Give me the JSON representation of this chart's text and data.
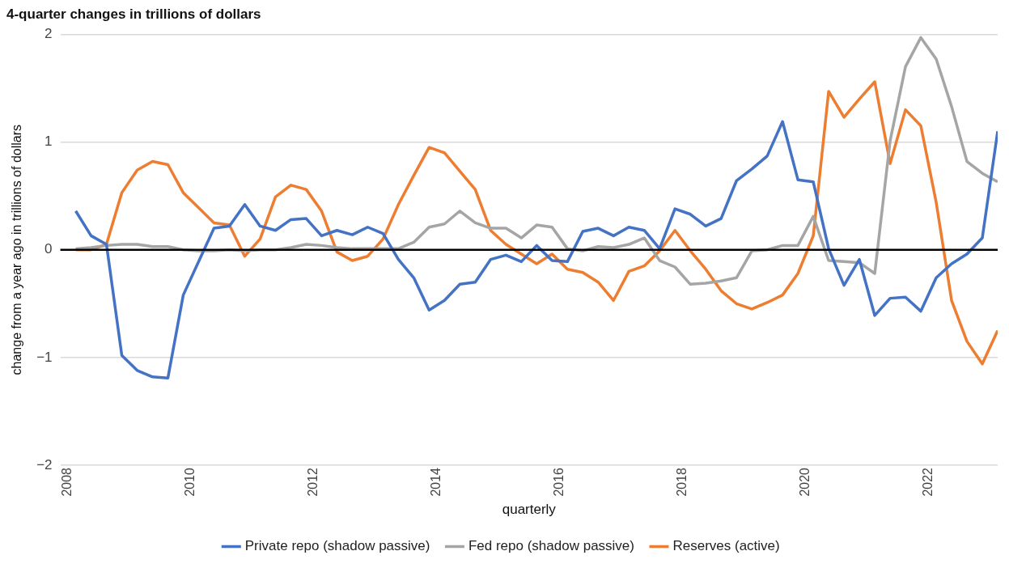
{
  "chart_data": {
    "type": "line",
    "title": "4-quarter changes in trillions of dollars",
    "xlabel": "quarterly",
    "ylabel": "change from a year ago in trillions of dollars",
    "x": [
      2008.125,
      2008.375,
      2008.625,
      2008.875,
      2009.125,
      2009.375,
      2009.625,
      2009.875,
      2010.125,
      2010.375,
      2010.625,
      2010.875,
      2011.125,
      2011.375,
      2011.625,
      2011.875,
      2012.125,
      2012.375,
      2012.625,
      2012.875,
      2013.125,
      2013.375,
      2013.625,
      2013.875,
      2014.125,
      2014.375,
      2014.625,
      2014.875,
      2015.125,
      2015.375,
      2015.625,
      2015.875,
      2016.125,
      2016.375,
      2016.625,
      2016.875,
      2017.125,
      2017.375,
      2017.625,
      2017.875,
      2018.125,
      2018.375,
      2018.625,
      2018.875,
      2019.125,
      2019.375,
      2019.625,
      2019.875,
      2020.125,
      2020.375,
      2020.625,
      2020.875,
      2021.125,
      2021.375,
      2021.625,
      2021.875,
      2022.125,
      2022.375,
      2022.625,
      2022.875,
      2023.125
    ],
    "series": [
      {
        "name": "Private repo (shadow passive)",
        "color": "#4472c4",
        "values": [
          0.36,
          0.13,
          0.05,
          -0.98,
          -1.12,
          -1.18,
          -1.19,
          -0.42,
          -0.11,
          0.2,
          0.22,
          0.42,
          0.22,
          0.18,
          0.28,
          0.29,
          0.13,
          0.18,
          0.14,
          0.21,
          0.15,
          -0.09,
          -0.26,
          -0.56,
          -0.47,
          -0.32,
          -0.3,
          -0.09,
          -0.05,
          -0.11,
          0.04,
          -0.1,
          -0.11,
          0.17,
          0.2,
          0.13,
          0.21,
          0.18,
          0.01,
          0.38,
          0.33,
          0.22,
          0.29,
          0.64,
          0.75,
          0.87,
          1.19,
          0.65,
          0.63,
          0.01,
          -0.33,
          -0.09,
          -0.61,
          -0.45,
          -0.44,
          -0.57,
          -0.26,
          -0.13,
          -0.04,
          0.11,
          1.1
        ]
      },
      {
        "name": "Fed repo (shadow passive)",
        "color": "#a5a5a5",
        "values": [
          0.01,
          0.02,
          0.04,
          0.05,
          0.05,
          0.03,
          0.03,
          0,
          -0.01,
          -0.01,
          0,
          -0.01,
          0,
          0,
          0.02,
          0.05,
          0.04,
          0.02,
          0.01,
          0.01,
          0.01,
          0.01,
          0.07,
          0.21,
          0.24,
          0.36,
          0.25,
          0.2,
          0.2,
          0.11,
          0.23,
          0.21,
          0.01,
          -0.01,
          0.03,
          0.02,
          0.05,
          0.11,
          -0.1,
          -0.16,
          -0.32,
          -0.31,
          -0.29,
          -0.26,
          -0.01,
          0,
          0.04,
          0.04,
          0.31,
          -0.1,
          -0.11,
          -0.12,
          -0.22,
          1.01,
          1.7,
          1.97,
          1.77,
          1.33,
          0.82,
          0.71,
          0.63
        ]
      },
      {
        "name": "Reserves (active)",
        "color": "#ed7d31",
        "values": [
          0,
          0,
          0.05,
          0.53,
          0.74,
          0.82,
          0.79,
          0.53,
          0.39,
          0.25,
          0.23,
          -0.06,
          0.1,
          0.49,
          0.6,
          0.56,
          0.36,
          -0.02,
          -0.1,
          -0.06,
          0.1,
          0.42,
          0.69,
          0.95,
          0.9,
          0.73,
          0.56,
          0.18,
          0.05,
          -0.04,
          -0.13,
          -0.04,
          -0.18,
          -0.21,
          -0.3,
          -0.47,
          -0.2,
          -0.15,
          -0.01,
          0.18,
          -0.01,
          -0.18,
          -0.38,
          -0.5,
          -0.55,
          -0.49,
          -0.42,
          -0.22,
          0.13,
          1.47,
          1.23,
          1.4,
          1.56,
          0.8,
          1.3,
          1.15,
          0.44,
          -0.47,
          -0.85,
          -1.06,
          -0.75
        ]
      }
    ],
    "xlim": [
      2007.875,
      2023.125
    ],
    "xticks": [
      2008,
      2010,
      2012,
      2014,
      2016,
      2018,
      2020,
      2022
    ],
    "ylim": [
      -2,
      2
    ],
    "yticks": [
      {
        "value": -2,
        "label": "−2"
      },
      {
        "value": -1,
        "label": "−1"
      },
      0,
      1,
      2
    ],
    "ref_lines": [
      {
        "axis": "y",
        "value": 0,
        "color": "#000000"
      }
    ],
    "grid": "y",
    "legend": "bottom",
    "marker": "none",
    "line_style": "solid"
  }
}
